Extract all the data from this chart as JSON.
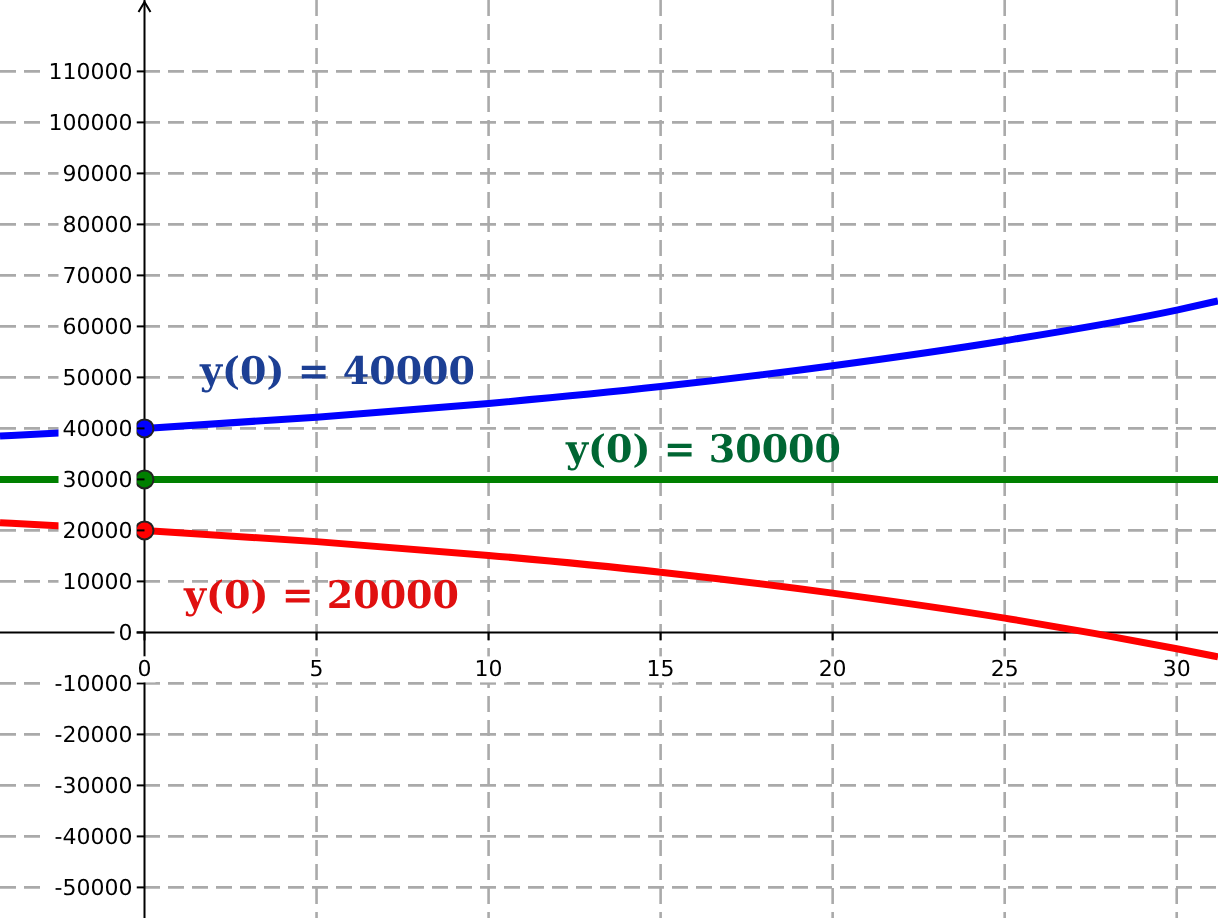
{
  "chart_data": {
    "type": "line",
    "xlim": [
      -4.2,
      31.2
    ],
    "ylim": [
      -56000,
      124000
    ],
    "xticks": [
      0,
      5,
      10,
      15,
      20,
      25,
      30
    ],
    "yticks": [
      -50000,
      -40000,
      -30000,
      -20000,
      -10000,
      0,
      10000,
      20000,
      30000,
      40000,
      50000,
      60000,
      70000,
      80000,
      90000,
      100000,
      110000
    ],
    "grid": true,
    "line_style": "solid",
    "marker": "none",
    "series": [
      {
        "color": "#0000ff",
        "x": [
          -4.2,
          0,
          5,
          10,
          15,
          20,
          25,
          30,
          31.2
        ],
        "values": [
          38500,
          40000,
          42200,
          44900,
          48200,
          52300,
          57200,
          63200,
          65000
        ]
      },
      {
        "color": "#008000",
        "x": [
          -4.2,
          0,
          31.2
        ],
        "values": [
          30000,
          30000,
          30000
        ]
      },
      {
        "color": "#ff0000",
        "x": [
          -4.2,
          0,
          5,
          10,
          15,
          20,
          25,
          30,
          31.2
        ],
        "values": [
          21500,
          20000,
          17800,
          15100,
          11800,
          7700,
          2800,
          -3200,
          -4800
        ]
      },
      {
        "type": "scatter",
        "marker": "circle",
        "x": [
          0,
          0,
          0
        ],
        "values": [
          40000,
          30000,
          20000
        ],
        "colors": [
          "#0000ff",
          "#008000",
          "#ff0000"
        ]
      }
    ],
    "annotations": [
      "y(0) = 40000",
      "y(0) = 30000",
      "y(0) = 20000"
    ]
  }
}
